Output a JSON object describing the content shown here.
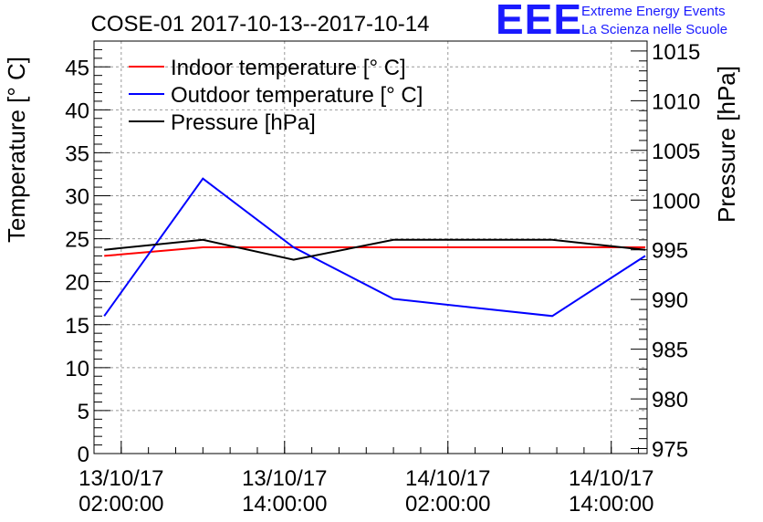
{
  "chart_data": {
    "type": "line",
    "title": "COSE-01 2017-10-13--2017-10-14",
    "ylabel": "Temperature [° C]",
    "y2label": "Pressure [hPa]",
    "xlabel": "",
    "x_ticks": [
      "13/10/17\n02:00:00",
      "13/10/17\n14:00:00",
      "14/10/17\n02:00:00",
      "14/10/17\n14:00:00"
    ],
    "x": [
      "2017-10-13 00:45",
      "2017-10-13 08:00",
      "2017-10-13 14:40",
      "2017-10-13 22:00",
      "2017-10-14 03:45",
      "2017-10-14 09:40",
      "2017-10-14 16:30"
    ],
    "ylim": [
      0,
      48
    ],
    "y2lim": [
      974.5,
      1016
    ],
    "y_ticks": [
      0,
      5,
      10,
      15,
      20,
      25,
      30,
      35,
      40,
      45
    ],
    "y2_ticks": [
      975,
      980,
      985,
      990,
      995,
      1000,
      1005,
      1010,
      1015
    ],
    "grid": true,
    "legend_position": "top-left",
    "series": [
      {
        "name": "Indoor temperature [° C]",
        "axis": "left",
        "color": "#ff0000",
        "values": [
          23,
          24,
          24,
          24,
          24,
          24,
          24
        ]
      },
      {
        "name": "Outdoor temperature [° C]",
        "axis": "left",
        "color": "#0000ff",
        "values": [
          16,
          32,
          24,
          18,
          17,
          16,
          23
        ]
      },
      {
        "name": "Pressure [hPa]",
        "axis": "right",
        "color": "#000000",
        "values": [
          995,
          996,
          994,
          996,
          996,
          996,
          995
        ]
      }
    ]
  },
  "logo": {
    "mark": "EEE",
    "line1": "Extreme Energy Events",
    "line2": "La Scienza nelle Scuole",
    "color": "#1a1aff"
  }
}
